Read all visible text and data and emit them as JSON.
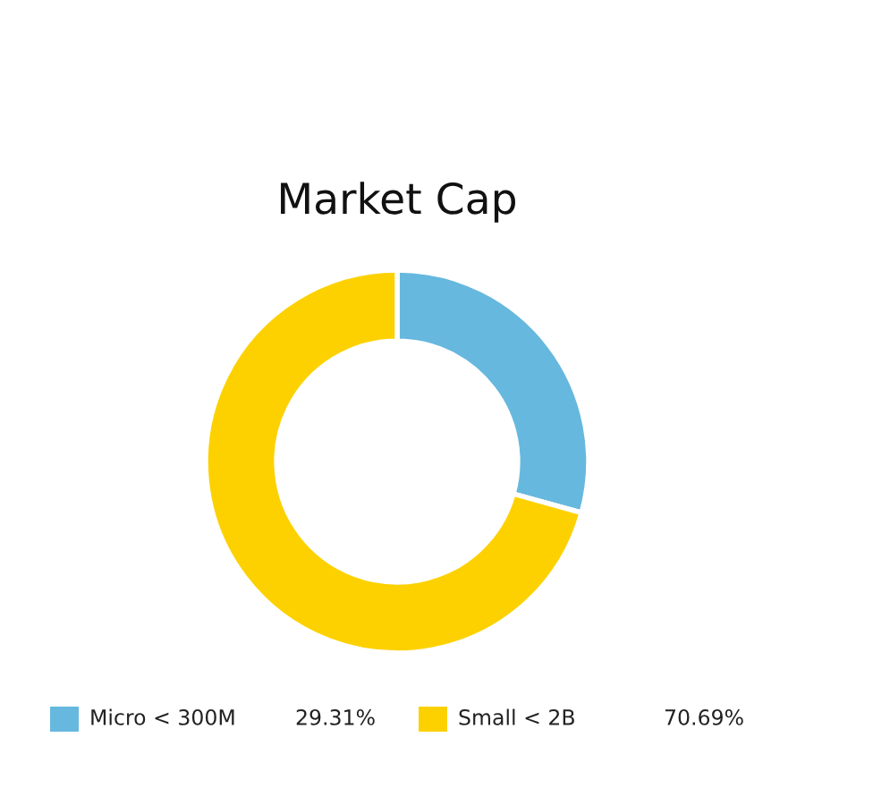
{
  "chart_data": {
    "type": "donut",
    "title": "Market Cap",
    "categories": [
      "Micro < 300M",
      "Small < 2B"
    ],
    "values": [
      29.31,
      70.69
    ],
    "colors": [
      "#66b8de",
      "#fdd100"
    ],
    "value_labels": [
      "29.31%",
      "70.69%"
    ],
    "legend": "bottom"
  }
}
